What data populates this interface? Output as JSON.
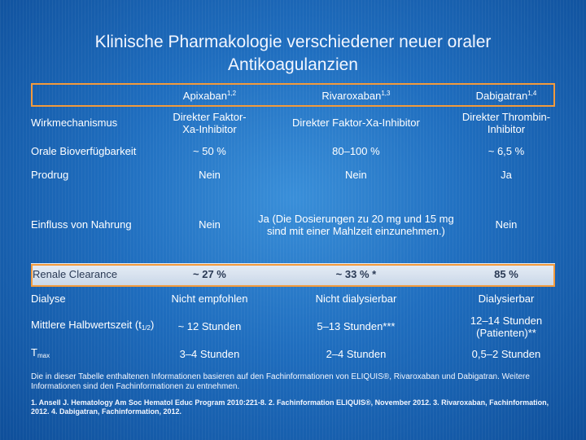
{
  "title": {
    "line1": "Klinische Pharmakologie verschiedener neuer oraler",
    "line2": "Antikoagulanzien"
  },
  "columns": [
    {
      "name": "Apixaban",
      "sup": "1,2"
    },
    {
      "name": "Rivaroxaban",
      "sup": "1,3"
    },
    {
      "name": "Dabigatran",
      "sup": "1,4"
    }
  ],
  "rows": {
    "mechanism": {
      "label": "Wirkmechanismus",
      "cells": [
        "Direkter Faktor-Xa-Inhibitor",
        "Direkter Faktor-Xa-Inhibitor",
        "Direkter Thrombin-Inhibitor"
      ]
    },
    "bioavailability": {
      "label": "Orale Bioverfügbarkeit",
      "cells": [
        "~ 50 %",
        "80–100 %",
        "~ 6,5 %"
      ]
    },
    "prodrug": {
      "label": "Prodrug",
      "cells": [
        "Nein",
        "Nein",
        "Ja"
      ]
    },
    "food": {
      "label": "Einfluss von Nahrung",
      "cells": [
        "Nein",
        "Ja (Die Dosierungen zu 20 mg und 15 mg sind mit einer Mahlzeit einzunehmen.)",
        "Nein"
      ]
    },
    "renal": {
      "label": "Renale Clearance",
      "cells": [
        "~ 27 %",
        "~ 33 % *",
        "85 %"
      ]
    },
    "dialysis": {
      "label": "Dialyse",
      "cells": [
        "Nicht empfohlen",
        "Nicht dialysierbar",
        "Dialysierbar"
      ]
    },
    "halflife": {
      "label_pre": "Mittlere Halbwertszeit (t",
      "label_sub": "1/2",
      "label_post": ")",
      "cells": [
        "~ 12 Stunden",
        "5–13 Stunden***",
        "12–14 Stunden (Patienten)**"
      ]
    },
    "tmax": {
      "label_main": "T",
      "label_sub": "max",
      "cells": [
        "3–4 Stunden",
        "2–4 Stunden",
        "0,5–2 Stunden"
      ]
    }
  },
  "footnote": "Die in dieser Tabelle enthaltenen Informationen basieren auf den Fachinformationen von ELIQUIS®, Rivaroxaban und Dabigatran. Weitere Informationen sind den Fachinformationen zu entnehmen.",
  "references": "1. Ansell J. Hematology Am Soc Hematol Educ Program 2010:221-8. 2. Fachinformation ELIQUIS®, November 2012. 3. Rivaroxaban, Fachinformation, 2012. 4. Dabigatran, Fachinformation, 2012."
}
